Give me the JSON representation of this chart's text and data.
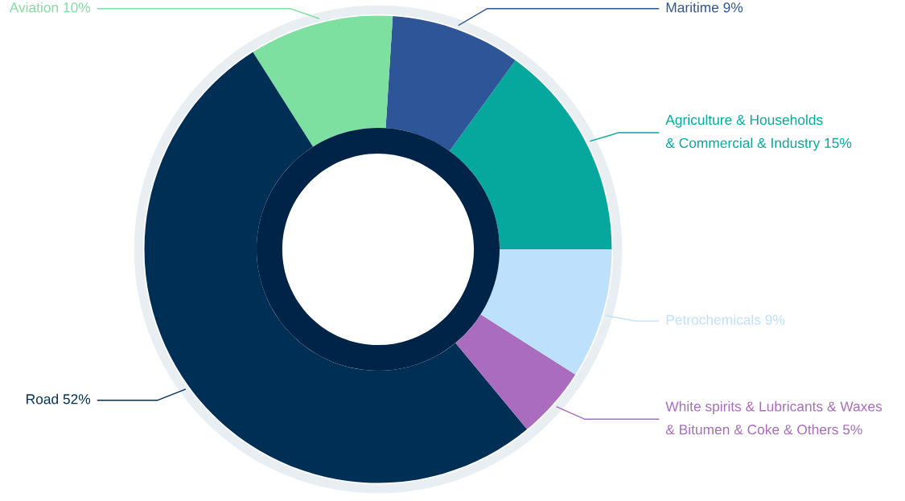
{
  "chart_data": {
    "type": "donut",
    "categories": [
      "Agriculture & Households\n& Commercial & Industry",
      "Maritime",
      "Aviation",
      "Road",
      "White spirits & Lubricants & Waxes\n& Bitumen & Coke & Others",
      "Petrochemicals"
    ],
    "values": [
      15,
      9,
      10,
      52,
      5,
      9
    ],
    "value_labels": [
      "15%",
      "9%",
      "10%",
      "52%",
      "5%",
      "9%"
    ],
    "colors": [
      "#06a79d",
      "#2d5597",
      "#7ddfa0",
      "#002f56",
      "#a96cbf",
      "#bde0fd"
    ],
    "legend": false
  }
}
